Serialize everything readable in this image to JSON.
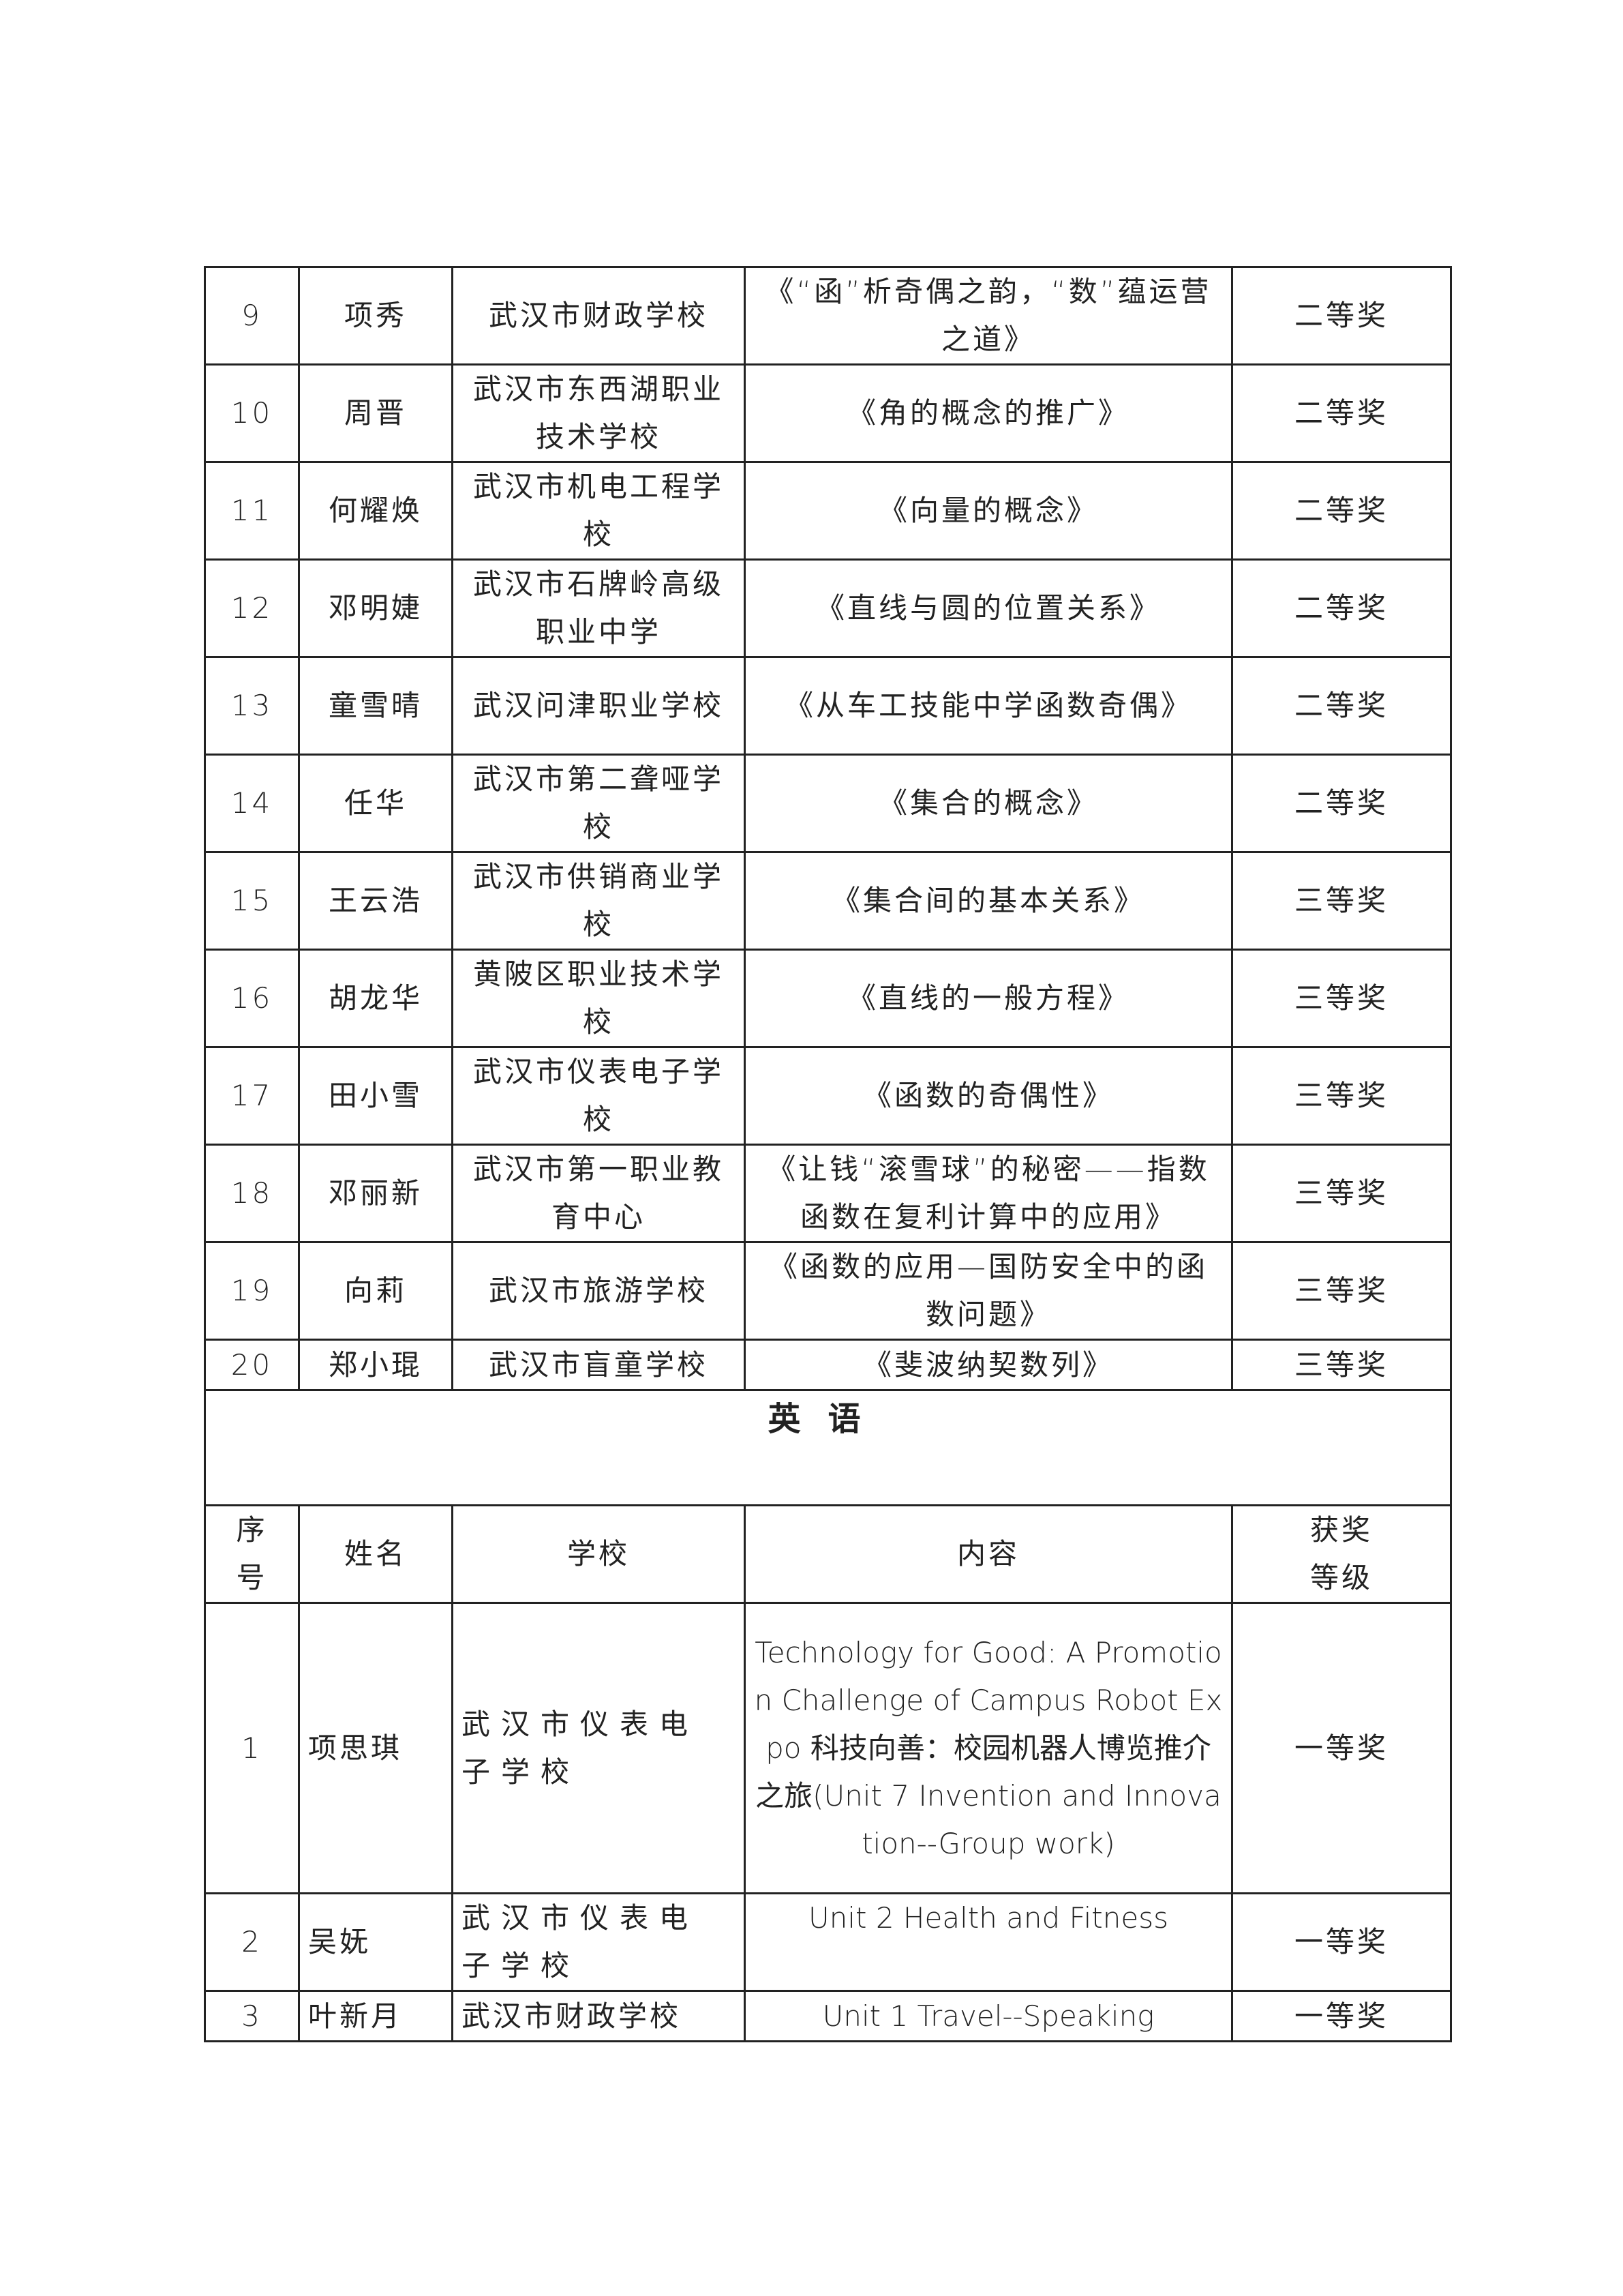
{
  "math_rows": [
    {
      "no": "9",
      "name": "项秀",
      "school": "武汉市财政学校",
      "content": "《“函”析奇偶之韵，“数”蕴运营之道》",
      "award": "二等奖"
    },
    {
      "no": "10",
      "name": "周晋",
      "school": "武汉市东西湖职业技术学校",
      "content": "《角的概念的推广》",
      "award": "二等奖"
    },
    {
      "no": "11",
      "name": "何耀焕",
      "school": "武汉市机电工程学校",
      "content": "《向量的概念》",
      "award": "二等奖"
    },
    {
      "no": "12",
      "name": "邓明婕",
      "school": "武汉市石牌岭高级职业中学",
      "content": "《直线与圆的位置关系》",
      "award": "二等奖"
    },
    {
      "no": "13",
      "name": "童雪晴",
      "school": "武汉问津职业学校",
      "content": "《从车工技能中学函数奇偶》",
      "award": "二等奖"
    },
    {
      "no": "14",
      "name": "任华",
      "school": "武汉市第二聋哑学校",
      "content": "《集合的概念》",
      "award": "二等奖"
    },
    {
      "no": "15",
      "name": "王云浩",
      "school": "武汉市供销商业学校",
      "content": "《集合间的基本关系》",
      "award": "三等奖"
    },
    {
      "no": "16",
      "name": "胡龙华",
      "school": "黄陂区职业技术学校",
      "content": "《直线的一般方程》",
      "award": "三等奖"
    },
    {
      "no": "17",
      "name": "田小雪",
      "school": "武汉市仪表电子学校",
      "content": "《函数的奇偶性》",
      "award": "三等奖"
    },
    {
      "no": "18",
      "name": "邓丽新",
      "school": "武汉市第一职业教育中心",
      "content": "《让钱“滚雪球”的秘密——指数函数在复利计算中的应用》",
      "award": "三等奖"
    },
    {
      "no": "19",
      "name": "向莉",
      "school": "武汉市旅游学校",
      "content": "《函数的应用—国防安全中的函数问题》",
      "award": "三等奖"
    },
    {
      "no": "20",
      "name": "郑小琨",
      "school": "武汉市盲童学校",
      "content": "《斐波纳契数列》",
      "award": "三等奖"
    }
  ],
  "english": {
    "title": "英语",
    "headers": {
      "no": "序号",
      "name": "姓名",
      "school": "学校",
      "content": "内容",
      "award": "获奖等级"
    },
    "rows": [
      {
        "no": "1",
        "name": "项思琪",
        "school": "武汉市仪表电子学校",
        "content": "Technology for Good: A Promotion Challenge of Campus Robot Expo 科技向善：校园机器人博览推介之旅(Unit 7 Invention and Innovation--Group work)",
        "award": "一等奖"
      },
      {
        "no": "2",
        "name": "吴妩",
        "school": "武汉市仪表电子学校",
        "content": "Unit 2 Health and Fitness",
        "award": "一等奖"
      },
      {
        "no": "3",
        "name": "叶新月",
        "school": "武汉市财政学校",
        "content": "Unit 1 Travel--Speaking",
        "award": "一等奖"
      }
    ]
  }
}
